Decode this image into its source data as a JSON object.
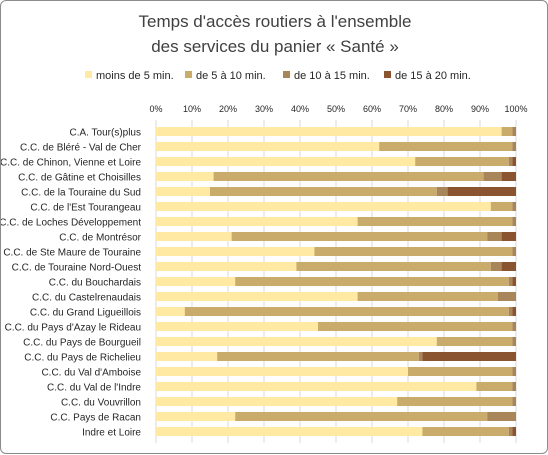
{
  "chart_data": {
    "type": "bar",
    "orientation": "horizontal",
    "stacked": "percent",
    "title_lines": [
      "Temps d'accès routiers à l'ensemble",
      "des services du panier « Santé »"
    ],
    "categories": [
      "C.A. Tour(s)plus",
      "C.C. de Bléré - Val de Cher",
      "C.C. de Chinon, Vienne et Loire",
      "C.C. de Gâtine et Choisilles",
      "C.C. de la Touraine du Sud",
      "C.C. de l'Est Tourangeau",
      "C.C. de Loches Développement",
      "C.C. de Montrésor",
      "C.C. de Ste Maure de Touraine",
      "C.C. de Touraine Nord-Ouest",
      "C.C. du Bouchardais",
      "C.C. du Castelrenaudais",
      "C.C. du Grand Ligueillois",
      "C.C. du Pays d'Azay le Rideau",
      "C.C. du Pays de Bourgueil",
      "C.C. du Pays de Richelieu",
      "C.C. du Val d'Amboise",
      "C.C. du Val de l'Indre",
      "C.C. du Vouvrillon",
      "C.C. Pays de Racan",
      "Indre et Loire"
    ],
    "series": [
      {
        "name": "moins de 5 min.",
        "color": "#ffe9a3",
        "values": [
          96,
          62,
          72,
          16,
          15,
          93,
          56,
          21,
          44,
          39,
          22,
          56,
          8,
          45,
          78,
          17,
          70,
          89,
          67,
          22,
          74
        ]
      },
      {
        "name": "de 5 à 10 min.",
        "color": "#c9ab6c",
        "values": [
          3,
          37,
          26,
          75,
          63,
          6,
          43,
          71,
          55,
          54,
          76,
          39,
          90,
          54,
          21,
          56,
          29,
          10,
          32,
          70,
          24
        ]
      },
      {
        "name": "de 10 à 15 min.",
        "color": "#a8865a",
        "values": [
          1,
          1,
          1,
          5,
          3,
          1,
          1,
          4,
          1,
          3,
          1,
          5,
          1,
          1,
          1,
          1,
          1,
          1,
          1,
          8,
          1
        ]
      },
      {
        "name": "de 15 à 20 min.",
        "color": "#8a5431",
        "values": [
          0,
          0,
          1,
          4,
          19,
          0,
          0,
          4,
          0,
          4,
          1,
          0,
          1,
          0,
          0,
          26,
          0,
          0,
          0,
          0,
          1
        ]
      }
    ],
    "x_ticks": [
      "0%",
      "10%",
      "20%",
      "30%",
      "40%",
      "50%",
      "60%",
      "70%",
      "80%",
      "90%",
      "100%"
    ],
    "xlim": [
      0,
      100
    ],
    "legend_position": "top",
    "grid": "vertical"
  }
}
